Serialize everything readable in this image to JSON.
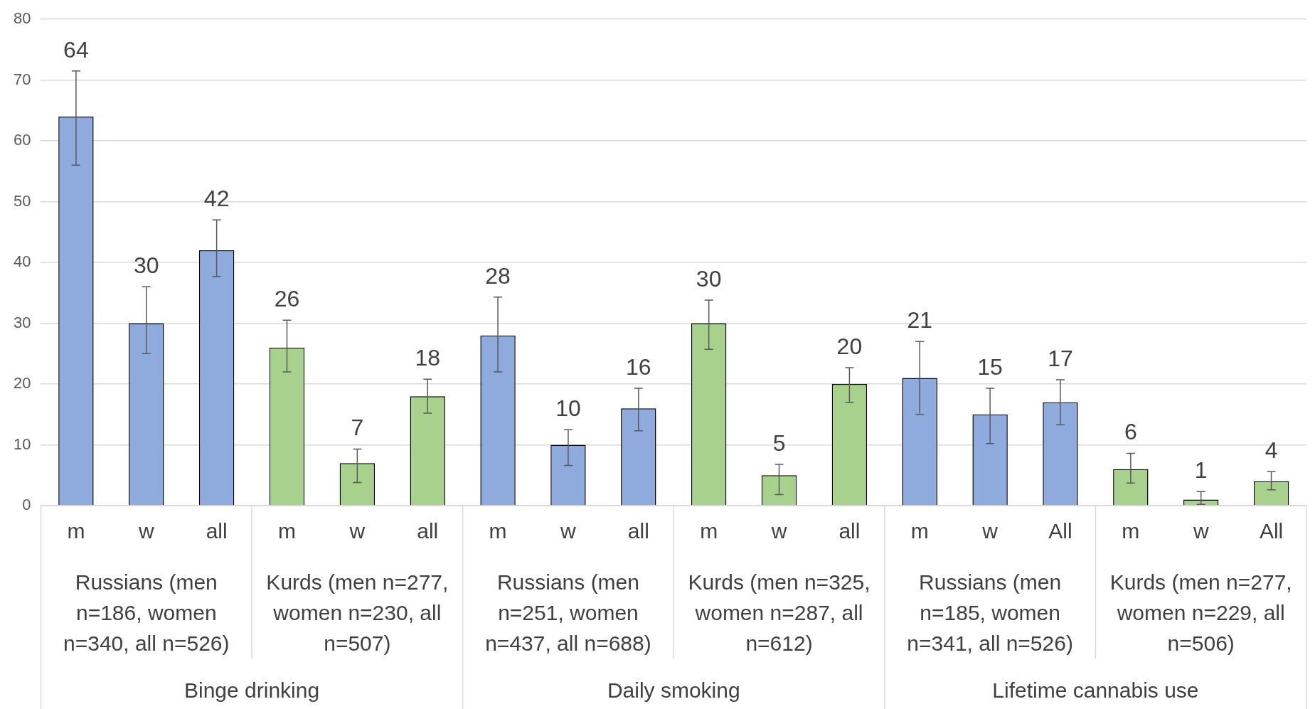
{
  "chart_data": {
    "type": "bar",
    "categories": [
      "m",
      "w",
      "all",
      "m",
      "w",
      "all",
      "m",
      "w",
      "all",
      "m",
      "w",
      "all",
      "m",
      "w",
      "All",
      "m",
      "w",
      "All"
    ],
    "values": [
      64,
      30,
      42,
      26,
      7,
      18,
      28,
      10,
      16,
      30,
      5,
      20,
      21,
      15,
      17,
      6,
      1,
      4
    ],
    "colors": [
      "#8faadc",
      "#8faadc",
      "#8faadc",
      "#a9d18e",
      "#a9d18e",
      "#a9d18e",
      "#8faadc",
      "#8faadc",
      "#8faadc",
      "#a9d18e",
      "#a9d18e",
      "#a9d18e",
      "#8faadc",
      "#8faadc",
      "#8faadc",
      "#a9d18e",
      "#a9d18e",
      "#a9d18e"
    ],
    "errors": [
      [
        56,
        71.5
      ],
      [
        25,
        36
      ],
      [
        37.7,
        47
      ],
      [
        22,
        30.5
      ],
      [
        3.8,
        9.3
      ],
      [
        15.2,
        20.8
      ],
      [
        22,
        34.3
      ],
      [
        6.6,
        12.5
      ],
      [
        12.3,
        19.3
      ],
      [
        25.7,
        33.8
      ],
      [
        1.8,
        6.8
      ],
      [
        17,
        22.7
      ],
      [
        15,
        27
      ],
      [
        10.2,
        19.3
      ],
      [
        13.3,
        20.7
      ],
      [
        3.7,
        8.6
      ],
      [
        0.2,
        2.3
      ],
      [
        2.6,
        5.6
      ]
    ],
    "data_labels": true,
    "ylim": [
      0,
      80
    ],
    "yticks": [
      0,
      10,
      20,
      30,
      40,
      50,
      60,
      70,
      80
    ],
    "grid": "y",
    "legend": false,
    "annotations": [
      "Russians (men n=186, women n=340, all n=526)",
      "Kurds (men n=277, women n=230, all n=507)",
      "Russians (men n=251, women n=437, all n=688)",
      "Kurds (men n=325, women n=287, all n=612)",
      "Russians (men n=185, women n=341, all n=526)",
      "Kurds (men n=277, women n=229, all n=506)",
      "Binge drinking",
      "Daily smoking",
      "Lifetime cannabis use"
    ]
  }
}
